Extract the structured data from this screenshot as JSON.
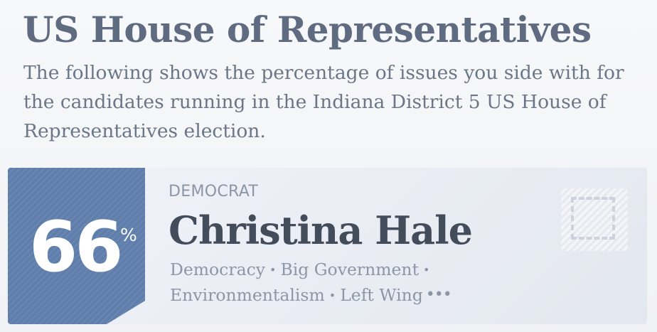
{
  "header": {
    "title": "US House of Representatives",
    "description": "The following shows the percentage of issues you side with for the candidates running in the Indiana District 5 US House of Representatives election."
  },
  "candidate": {
    "score": "66",
    "score_unit": "%",
    "party": "DEMOCRAT",
    "name": "Christina Hale",
    "tags": [
      "Democracy",
      "Big Government",
      "Environmentalism",
      "Left Wing"
    ],
    "tag_separator": "•",
    "more_label": "•••",
    "photo": "placeholder-image-icon"
  },
  "colors": {
    "title": "#5f6b80",
    "description": "#6b7689",
    "score_panel": "#5f7eab",
    "name": "#434c5a",
    "muted": "#8d96a6"
  }
}
